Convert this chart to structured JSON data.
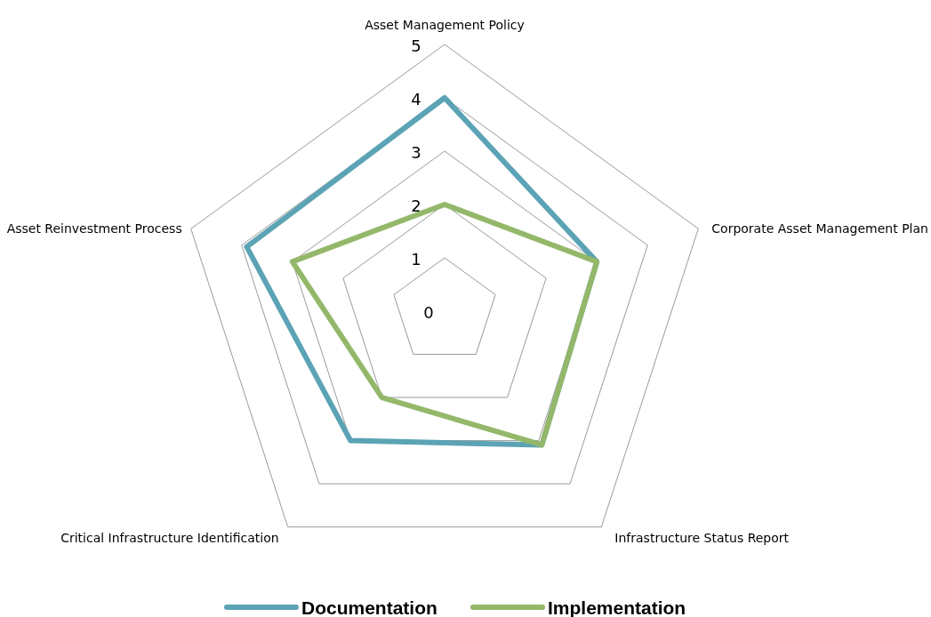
{
  "chart_data": {
    "type": "radar",
    "categories": [
      "Asset Management Policy",
      "Corporate Asset Management Plan",
      "Infrastructure Status Report",
      "Critical Infrastructure Identification",
      "Asset Reinvestment Process"
    ],
    "series": [
      {
        "name": "Documentation",
        "color": "#5ba3b5",
        "values": [
          4,
          3,
          3.1,
          3,
          3.9
        ]
      },
      {
        "name": "Implementation",
        "color": "#94b86a",
        "values": [
          2,
          3,
          3.1,
          2,
          3
        ]
      }
    ],
    "ylim": [
      0,
      5
    ],
    "yticks": [
      0,
      1,
      2,
      3,
      4,
      5
    ],
    "grid": true,
    "legend": "bottom"
  }
}
